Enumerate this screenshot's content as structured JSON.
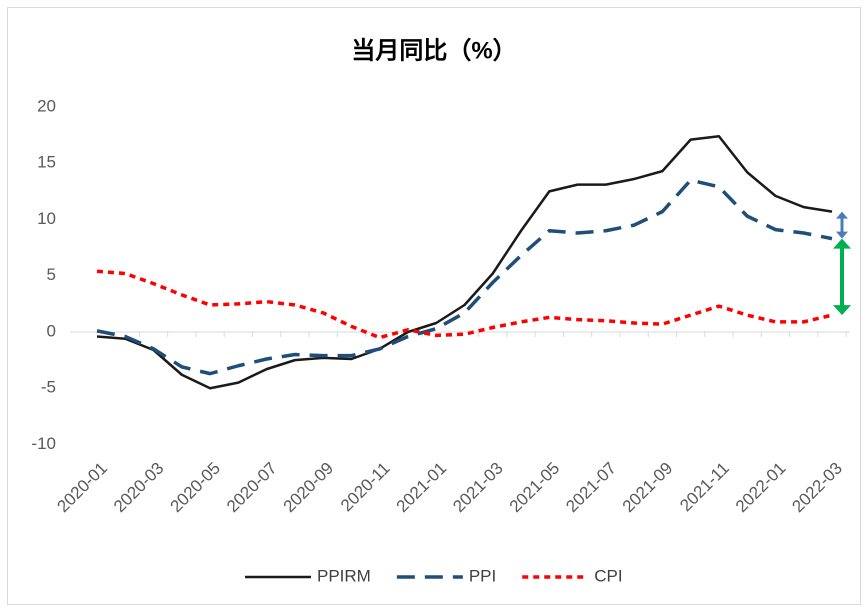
{
  "chart_data": {
    "type": "line",
    "title": "当月同比（%）",
    "categories": [
      "2020-01",
      null,
      "2020-03",
      null,
      "2020-05",
      null,
      "2020-07",
      null,
      "2020-09",
      null,
      "2020-11",
      null,
      "2021-01",
      null,
      "2021-03",
      null,
      "2021-05",
      null,
      "2021-07",
      null,
      "2021-09",
      null,
      "2021-11",
      null,
      "2022-01",
      null,
      "2022-03"
    ],
    "series": [
      {
        "name": "PPIRM",
        "color": "#1a1a1a",
        "dash": "solid",
        "values": [
          -0.4,
          -0.6,
          -1.6,
          -3.8,
          -5.0,
          -4.5,
          -3.3,
          -2.5,
          -2.3,
          -2.4,
          -1.5,
          0.0,
          0.8,
          2.4,
          5.2,
          9.0,
          12.5,
          13.1,
          13.1,
          13.6,
          14.3,
          17.1,
          17.4,
          14.2,
          12.1,
          11.1,
          10.7
        ]
      },
      {
        "name": "PPI",
        "color": "#1f4e79",
        "dash": "long",
        "values": [
          0.1,
          -0.4,
          -1.5,
          -3.1,
          -3.7,
          -3.0,
          -2.4,
          -2.0,
          -2.1,
          -2.1,
          -1.5,
          -0.4,
          0.3,
          1.7,
          4.4,
          6.8,
          9.0,
          8.8,
          9.0,
          9.5,
          10.7,
          13.5,
          12.9,
          10.3,
          9.1,
          8.8,
          8.3
        ]
      },
      {
        "name": "CPI",
        "color": "#ff0000",
        "dash": "short",
        "values": [
          5.4,
          5.2,
          4.3,
          3.3,
          2.4,
          2.5,
          2.7,
          2.4,
          1.7,
          0.5,
          -0.5,
          0.2,
          -0.3,
          -0.2,
          0.4,
          0.9,
          1.3,
          1.1,
          1.0,
          0.8,
          0.7,
          1.5,
          2.3,
          1.5,
          0.9,
          0.9,
          1.5
        ]
      }
    ],
    "ylim": [
      -10,
      20
    ],
    "yticks": [
      -10,
      -5,
      0,
      5,
      10,
      15,
      20
    ],
    "grid": false,
    "legend": "bottom",
    "gap_arrows": [
      {
        "from": 0,
        "to": 1,
        "color": "#4a7ebb"
      },
      {
        "from": 1,
        "to": 2,
        "color": "#00b050"
      }
    ]
  }
}
